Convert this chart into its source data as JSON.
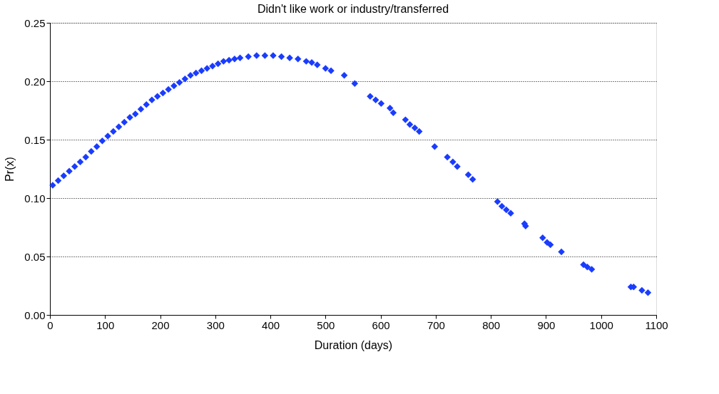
{
  "chart_data": {
    "type": "scatter",
    "title": "Didn't like work or industry/transferred",
    "xlabel": "Duration (days)",
    "ylabel": "Pr(x)",
    "x": [
      5,
      15,
      25,
      35,
      45,
      55,
      65,
      75,
      85,
      95,
      105,
      115,
      125,
      135,
      145,
      155,
      165,
      175,
      185,
      195,
      205,
      215,
      225,
      235,
      245,
      255,
      265,
      275,
      285,
      295,
      305,
      315,
      325,
      335,
      345,
      360,
      375,
      390,
      405,
      420,
      435,
      450,
      465,
      475,
      485,
      500,
      510,
      534,
      553,
      581,
      591,
      601,
      617,
      623,
      645,
      653,
      662,
      670,
      698,
      721,
      731,
      739,
      759,
      767,
      812,
      820,
      828,
      836,
      861,
      863,
      894,
      902,
      908,
      928,
      968,
      975,
      983,
      1054,
      1059,
      1074,
      1085
    ],
    "series": [
      {
        "color": "#1a3cff",
        "values": [
          0.111,
          0.115,
          0.119,
          0.123,
          0.127,
          0.131,
          0.135,
          0.14,
          0.144,
          0.149,
          0.153,
          0.157,
          0.161,
          0.165,
          0.169,
          0.172,
          0.176,
          0.18,
          0.184,
          0.187,
          0.19,
          0.193,
          0.196,
          0.199,
          0.202,
          0.205,
          0.207,
          0.209,
          0.211,
          0.213,
          0.215,
          0.217,
          0.218,
          0.219,
          0.22,
          0.221,
          0.222,
          0.222,
          0.222,
          0.221,
          0.22,
          0.219,
          0.217,
          0.216,
          0.214,
          0.211,
          0.209,
          0.205,
          0.198,
          0.187,
          0.184,
          0.181,
          0.177,
          0.173,
          0.167,
          0.163,
          0.16,
          0.157,
          0.144,
          0.135,
          0.131,
          0.127,
          0.12,
          0.116,
          0.097,
          0.093,
          0.09,
          0.087,
          0.078,
          0.076,
          0.066,
          0.062,
          0.06,
          0.054,
          0.043,
          0.041,
          0.039,
          0.024,
          0.024,
          0.021,
          0.019
        ]
      }
    ],
    "xlim": [
      0,
      1100
    ],
    "xticks": [
      0,
      100,
      200,
      300,
      400,
      500,
      600,
      700,
      800,
      900,
      1000,
      1100
    ],
    "ylim": [
      0,
      0.25
    ],
    "yticks": [
      {
        "value": 0,
        "label": "0.00"
      },
      {
        "value": 0.05,
        "label": "0.05"
      },
      {
        "value": 0.1,
        "label": "0.10"
      },
      {
        "value": 0.15,
        "label": "0.15"
      },
      {
        "value": 0.2,
        "label": "0.20"
      },
      {
        "value": 0.25,
        "label": "0.25"
      }
    ],
    "grid": "y",
    "legend": false,
    "marker": "diamond"
  }
}
